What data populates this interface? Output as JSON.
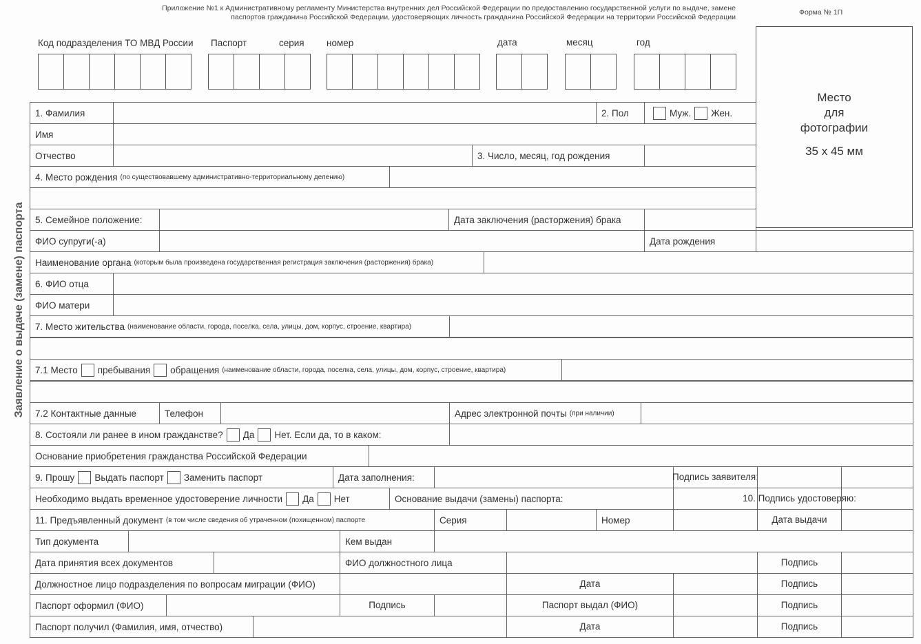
{
  "header": {
    "line1": "Приложение №1 к Административному регламенту Министерства внутренних дел Российской Федерации по предоставлению государственной услуги по выдаче, замене",
    "line2": "паспортов гражданина Российской Федерации, удостоверяющих личность гражданина Российской Федерации на территории Российской Федерации",
    "form_no": "Форма № 1П"
  },
  "side_title": "Заявление о выдаче (замене) паспорта",
  "top": {
    "kod": "Код подразделения ТО МВД России",
    "passport": "Паспорт",
    "seria": "серия",
    "nomer": "номер",
    "data": "дата",
    "mesyac": "месяц",
    "god": "год"
  },
  "photo": {
    "line1": "Место",
    "line2": "для",
    "line3": "фотографии",
    "size": "35 x 45 мм"
  },
  "form": {
    "familia": "1. Фамилия",
    "pol": "2. Пол",
    "male": "Муж.",
    "female": "Жен.",
    "imya": "Имя",
    "otchestvo": "Отчество",
    "dob": "3. Число, месяц, год рождения",
    "birthplace": "4. Место рождения",
    "birthplace_note": "(по существовавшему административно-территориальному делению)",
    "marital": "5. Семейное положение:",
    "marriage_date": "Дата заключения (расторжения) брака",
    "spouse": "ФИО супруги(-а)",
    "spouse_dob": "Дата рождения",
    "organ": "Наименование органа",
    "organ_note": "(которым была произведена государственная регистрация заключения (расторжения) брака)",
    "father": "6. ФИО отца",
    "mother": "ФИО матери",
    "residence": "7. Место жительства",
    "residence_note": "(наименование области, города, поселка, села, улицы, дом, корпус, строение, квартира)",
    "place71": "7.1 Место",
    "stay": "пребывания",
    "appeal": "обращения",
    "place71_note": "(наименование области, города, поселка, села, улицы, дом, корпус, строение, квартира)",
    "contacts": "7.2 Контактные данные",
    "phone": "Телефон",
    "email": "Адрес электронной почты",
    "email_note": "(при наличии)",
    "citizenship": "8. Состояли ли ранее в ином гражданстве?",
    "yes": "Да",
    "no_which": "Нет. Если да, то в каком:",
    "basis_citizenship": "Основание приобретения гражданства Российской Федерации",
    "request": "9. Прошу",
    "issue": "Выдать паспорт",
    "replace": "Заменить паспорт",
    "fill_date": "Дата заполнения:",
    "applicant_sign": "Подпись заявителя:",
    "temp_id": "Необходимо выдать временное удостоверение личности",
    "no": "Нет",
    "issue_basis": "Основание выдачи (замены) паспорта:",
    "certify": "10. Подпись удостоверяю:",
    "doc": "11. Предъявленный документ",
    "doc_note": "(в том числе сведения об утраченном (похищенном) паспорте",
    "series": "Серия",
    "number": "Номер",
    "issue_date": "Дата выдачи",
    "doc_type": "Тип документа",
    "issued_by": "Кем выдан",
    "accept_date": "Дата принятия всех документов",
    "official_fio": "ФИО должностного лица",
    "sign": "Подпись",
    "migration_official": "Должностное лицо подразделения по вопросам миграции (ФИО)",
    "date": "Дата",
    "prepared_by": "Паспорт оформил (ФИО)",
    "issued_by_official": "Паспорт выдал (ФИО)",
    "received_by": "Паспорт получил (Фамилия, имя, отчество)"
  }
}
